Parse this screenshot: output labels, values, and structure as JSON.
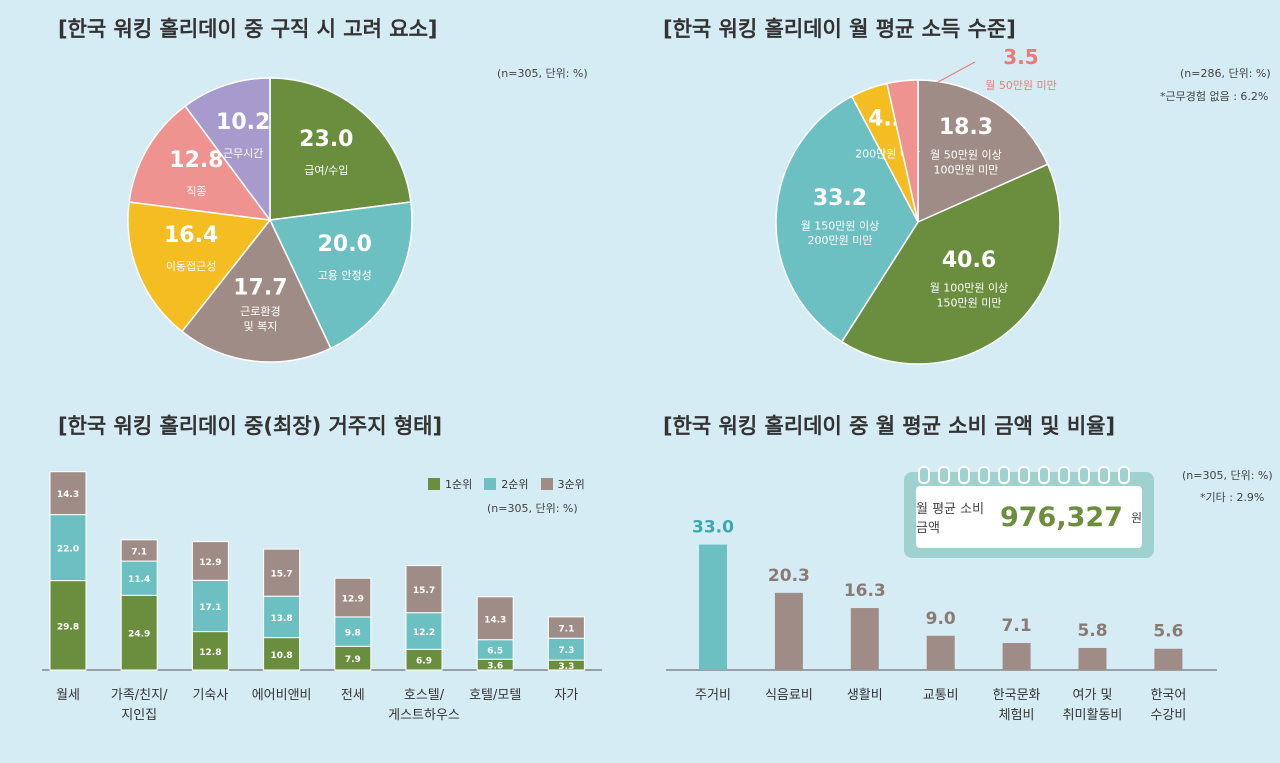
{
  "panels": {
    "tl": {
      "title": "[한국 워킹 홀리데이 중 구직 시 고려 요소]",
      "note": "(n=305, 단위: %)"
    },
    "tr": {
      "title": "[한국 워킹 홀리데이 월 평균 소득 수준]",
      "note": "(n=286, 단위: %)",
      "note2": "*근무경험 없음 : 6.2%"
    },
    "bl": {
      "title": "[한국 워킹 홀리데이 중(최장) 거주지 형태]",
      "note": "(n=305, 단위: %)"
    },
    "br": {
      "title": "[한국 워킹 홀리데이 중 월 평균 소비 금액 및 비율]",
      "note": "(n=305, 단위: %)",
      "note2": "*기타 : 2.9%",
      "callout": {
        "label": "월 평균 소비금액",
        "value": "976,327",
        "unit": "원"
      }
    }
  },
  "chart_data": [
    {
      "type": "pie",
      "title": "[한국 워킹 홀리데이 중 구직 시 고려 요소]",
      "slices": [
        {
          "label": "급여/수입",
          "value": 23.0,
          "color": "#6a8e3d"
        },
        {
          "label": "고용 안정성",
          "value": 20.0,
          "color": "#6dc0c2"
        },
        {
          "label": "근로환경 및 복지",
          "value": 17.7,
          "color": "#a08c86"
        },
        {
          "label": "이동접근성",
          "value": 16.4,
          "color": "#f4bd22"
        },
        {
          "label": "직종",
          "value": 12.8,
          "color": "#ef9390"
        },
        {
          "label": "근무시간",
          "value": 10.2,
          "color": "#a69bcc"
        }
      ]
    },
    {
      "type": "pie",
      "title": "[한국 워킹 홀리데이 월 평균 소득 수준]",
      "slices": [
        {
          "label": "월 50만원 이상 100만원 미만",
          "value": 18.3,
          "color": "#a08c86"
        },
        {
          "label": "월 100만원 이상 150만원 미만",
          "value": 40.6,
          "color": "#6a8e3d"
        },
        {
          "label": "월 150만원 이상 200만원 미만",
          "value": 33.2,
          "color": "#6dc0c2"
        },
        {
          "label": "200만원 이상",
          "value": 4.2,
          "color": "#f4bd22"
        },
        {
          "label": "월 50만원 미만",
          "value": 3.5,
          "color": "#ef9390"
        }
      ]
    },
    {
      "type": "bar",
      "stacked": true,
      "title": "[한국 워킹 홀리데이 중(최장) 거주지 형태]",
      "categories": [
        "월세",
        "가족/친지/\n지인집",
        "기숙사",
        "에어비앤비",
        "전세",
        "호스텔/\n게스트하우스",
        "호텔/모텔",
        "자가"
      ],
      "series": [
        {
          "name": "1순위",
          "color": "#6a8e3d",
          "values": [
            29.8,
            24.9,
            12.8,
            10.8,
            7.9,
            6.9,
            3.6,
            3.3
          ]
        },
        {
          "name": "2순위",
          "color": "#6dc0c2",
          "values": [
            22.0,
            11.4,
            17.1,
            13.8,
            9.8,
            12.2,
            6.5,
            7.3
          ]
        },
        {
          "name": "3순위",
          "color": "#a08c86",
          "values": [
            14.3,
            7.1,
            12.9,
            15.7,
            12.9,
            15.7,
            14.3,
            7.1
          ]
        }
      ]
    },
    {
      "type": "bar",
      "title": "[한국 워킹 홀리데이 중 월 평균 소비 금액 및 비율]",
      "categories": [
        "주거비",
        "식음료비",
        "생활비",
        "교통비",
        "한국문화\n체험비",
        "여가 및\n취미활동비",
        "한국어\n수강비"
      ],
      "values": [
        33.0,
        20.3,
        16.3,
        9.0,
        7.1,
        5.8,
        5.6
      ],
      "colors": [
        "#6dc0c2",
        "#a08c86",
        "#a08c86",
        "#a08c86",
        "#a08c86",
        "#a08c86",
        "#a08c86"
      ],
      "value_label_colors": [
        "#3aa9ab",
        "#8a7a74",
        "#8a7a74",
        "#8a7a74",
        "#8a7a74",
        "#8a7a74",
        "#8a7a74"
      ]
    }
  ]
}
